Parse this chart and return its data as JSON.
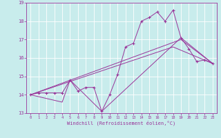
{
  "title": "",
  "xlabel": "Windchill (Refroidissement éolien,°C)",
  "ylabel": "",
  "background_color": "#c8ecec",
  "grid_color": "#ffffff",
  "line_color": "#993399",
  "xlim": [
    -0.5,
    23.5
  ],
  "ylim": [
    13,
    19
  ],
  "xticks": [
    0,
    1,
    2,
    3,
    4,
    5,
    6,
    7,
    8,
    9,
    10,
    11,
    12,
    13,
    14,
    15,
    16,
    17,
    18,
    19,
    20,
    21,
    22,
    23
  ],
  "yticks": [
    13,
    14,
    15,
    16,
    17,
    18,
    19
  ],
  "series": [
    {
      "x": [
        0,
        1,
        2,
        3,
        4,
        5,
        6,
        7,
        8,
        9,
        10,
        11,
        12,
        13,
        14,
        15,
        16,
        17,
        18,
        19,
        20,
        21,
        22,
        23
      ],
      "y": [
        14.0,
        14.1,
        14.1,
        14.1,
        14.1,
        14.8,
        14.2,
        14.4,
        14.4,
        13.1,
        14.0,
        15.1,
        16.6,
        16.8,
        18.0,
        18.2,
        18.5,
        18.0,
        18.6,
        17.1,
        16.5,
        15.8,
        15.9,
        15.7
      ],
      "marker": true
    },
    {
      "x": [
        0,
        4,
        5,
        9,
        19,
        23
      ],
      "y": [
        14.0,
        13.6,
        14.8,
        13.1,
        17.1,
        15.7
      ],
      "marker": false
    },
    {
      "x": [
        0,
        19,
        23
      ],
      "y": [
        14.0,
        17.0,
        15.7
      ],
      "marker": false
    },
    {
      "x": [
        0,
        18,
        23
      ],
      "y": [
        14.0,
        16.6,
        15.7
      ],
      "marker": false
    }
  ]
}
